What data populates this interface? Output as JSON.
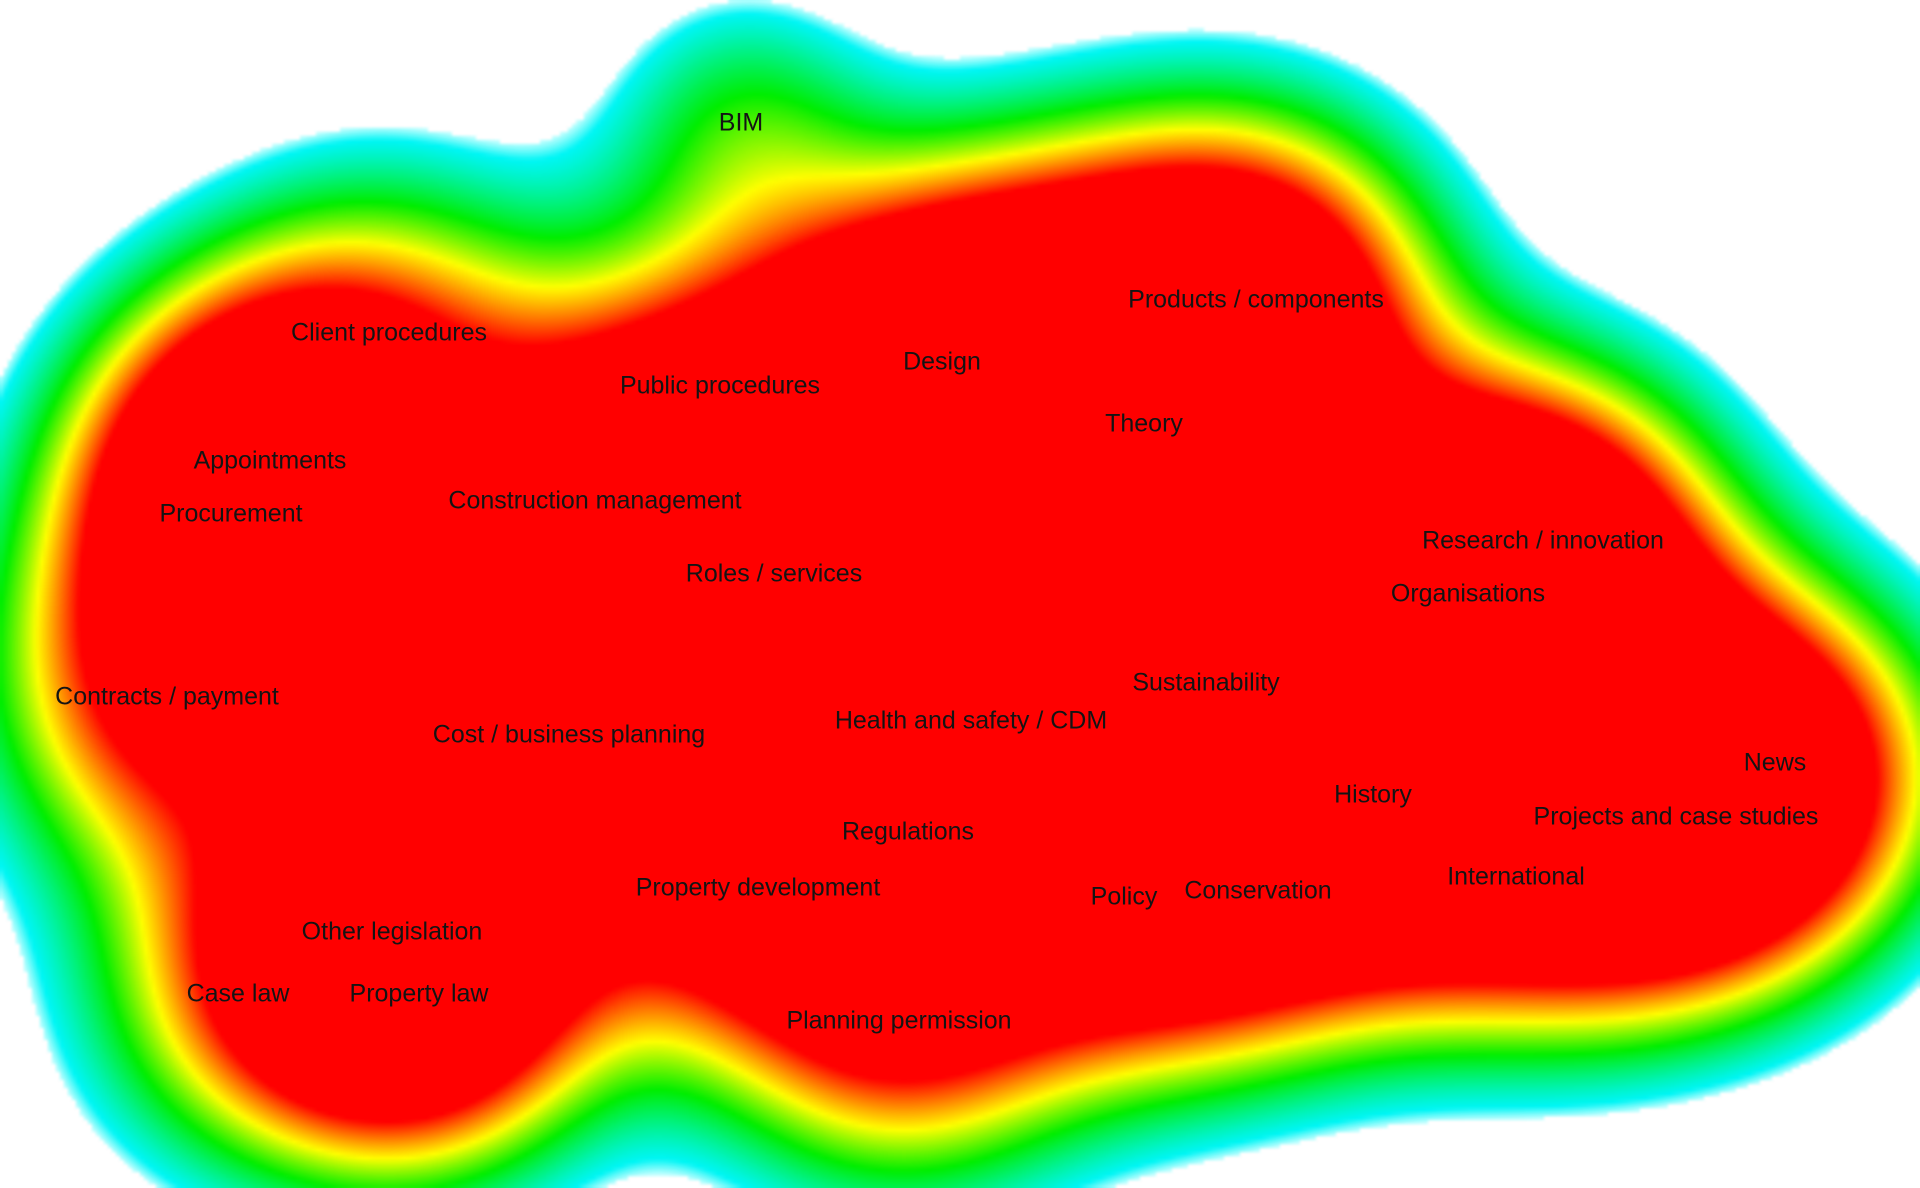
{
  "map": {
    "colors": {
      "edge": "#00f6f6",
      "low": "#00ee00",
      "mid": "#ffff00",
      "high": "#ff0000",
      "background": "#ffffff"
    },
    "terms": [
      {
        "id": "bim",
        "label": "BIM",
        "weight": 0.35
      },
      {
        "id": "client-procedures",
        "label": "Client procedures",
        "weight": 0.55
      },
      {
        "id": "public-procedures",
        "label": "Public procedures",
        "weight": 0.5
      },
      {
        "id": "design",
        "label": "Design",
        "weight": 1.0
      },
      {
        "id": "products-components",
        "label": "Products / components",
        "weight": 1.0
      },
      {
        "id": "theory",
        "label": "Theory",
        "weight": 0.8
      },
      {
        "id": "appointments",
        "label": "Appointments",
        "weight": 0.6
      },
      {
        "id": "procurement",
        "label": "Procurement",
        "weight": 0.85
      },
      {
        "id": "construction-management",
        "label": "Construction management",
        "weight": 0.9
      },
      {
        "id": "roles-services",
        "label": "Roles / services",
        "weight": 0.75
      },
      {
        "id": "research-innovation",
        "label": "Research / innovation",
        "weight": 0.9
      },
      {
        "id": "organisations",
        "label": "Organisations",
        "weight": 0.9
      },
      {
        "id": "contracts-payment",
        "label": "Contracts / payment",
        "weight": 0.85
      },
      {
        "id": "sustainability",
        "label": "Sustainability",
        "weight": 0.9
      },
      {
        "id": "cost-business-planning",
        "label": "Cost / business planning",
        "weight": 0.7
      },
      {
        "id": "health-safety-cdm",
        "label": "Health and safety / CDM",
        "weight": 0.6
      },
      {
        "id": "news",
        "label": "News",
        "weight": 0.8
      },
      {
        "id": "history",
        "label": "History",
        "weight": 0.85
      },
      {
        "id": "projects-case-studies",
        "label": "Projects and case studies",
        "weight": 1.0
      },
      {
        "id": "regulations",
        "label": "Regulations",
        "weight": 0.65
      },
      {
        "id": "international",
        "label": "International",
        "weight": 0.55
      },
      {
        "id": "property-development",
        "label": "Property development",
        "weight": 0.55
      },
      {
        "id": "policy",
        "label": "Policy",
        "weight": 0.7
      },
      {
        "id": "conservation",
        "label": "Conservation",
        "weight": 0.55
      },
      {
        "id": "other-legislation",
        "label": "Other legislation",
        "weight": 0.9
      },
      {
        "id": "case-law",
        "label": "Case law",
        "weight": 0.45
      },
      {
        "id": "property-law",
        "label": "Property law",
        "weight": 0.85
      },
      {
        "id": "planning-permission",
        "label": "Planning permission",
        "weight": 0.7
      }
    ]
  }
}
